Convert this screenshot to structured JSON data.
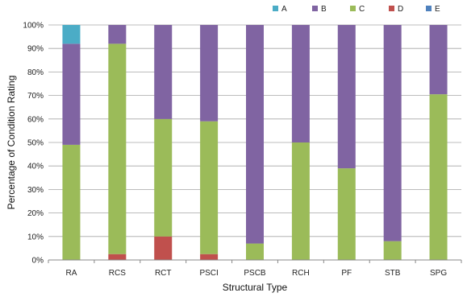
{
  "chart_data": {
    "type": "bar",
    "stacked": true,
    "normalized": true,
    "title": "",
    "xlabel": "Structural Type",
    "ylabel": "Percentage of Condition Rating",
    "ylim": [
      0,
      100
    ],
    "y_tick_format": "percent",
    "y_ticks": [
      0,
      10,
      20,
      30,
      40,
      50,
      60,
      70,
      80,
      90,
      100
    ],
    "grid": "horizontal",
    "legend_position": "top",
    "categories": [
      "RA",
      "RCS",
      "RCT",
      "PSCI",
      "PSCB",
      "RCH",
      "PF",
      "STB",
      "SPG"
    ],
    "series": [
      {
        "name": "E",
        "color": "#4F81BD",
        "values": [
          0,
          0,
          0,
          0,
          0,
          0,
          0,
          0,
          0
        ]
      },
      {
        "name": "D",
        "color": "#C0504D",
        "values": [
          0,
          2.5,
          10,
          2.5,
          0,
          0,
          0,
          0,
          0
        ]
      },
      {
        "name": "C",
        "color": "#9BBB59",
        "values": [
          49,
          89.5,
          50,
          56.5,
          7,
          50,
          39,
          8,
          70.5
        ]
      },
      {
        "name": "B",
        "color": "#8064A2",
        "values": [
          43,
          8,
          40,
          41,
          93,
          50,
          61,
          92,
          29.5
        ]
      },
      {
        "name": "A",
        "color": "#4BACC6",
        "values": [
          8,
          0,
          0,
          0,
          0,
          0,
          0,
          0,
          0
        ]
      }
    ],
    "legend_order": [
      "A",
      "B",
      "C",
      "D",
      "E"
    ]
  }
}
